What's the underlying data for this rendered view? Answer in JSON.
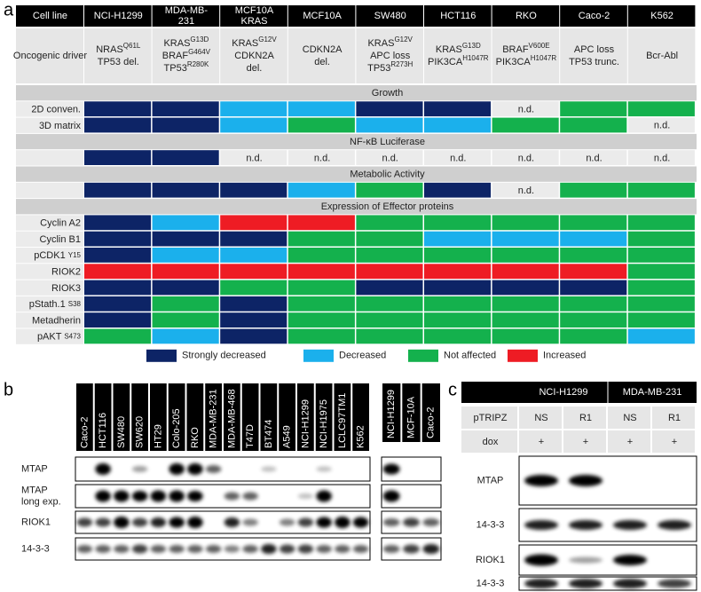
{
  "panel_a": {
    "label": "a",
    "header": [
      [
        "Cell line"
      ],
      [
        "NCI-H1299"
      ],
      [
        "MDA-MB-",
        "231"
      ],
      [
        "MCF10A",
        "KRAS"
      ],
      [
        "MCF10A"
      ],
      [
        "SW480"
      ],
      [
        "HCT116"
      ],
      [
        "RKO"
      ],
      [
        "Caco-2"
      ],
      [
        "K562"
      ]
    ],
    "driver_label": "Oncogenic driver",
    "drivers": [
      [
        {
          "text": "NRAS",
          "sup": "Q61L"
        },
        {
          "text": "TP53 del."
        }
      ],
      [
        {
          "text": "KRAS",
          "sup": "G13D"
        },
        {
          "text": "BRAF",
          "sup": "G464V"
        },
        {
          "text": "TP53",
          "sup": "R280K"
        }
      ],
      [
        {
          "text": "KRAS",
          "sup": "G12V"
        },
        {
          "text": "CDKN2A"
        },
        {
          "text": "del."
        }
      ],
      [
        {
          "text": "CDKN2A"
        },
        {
          "text": "del."
        }
      ],
      [
        {
          "text": "KRAS",
          "sup": "G12V"
        },
        {
          "text": "APC loss"
        },
        {
          "text": "TP53",
          "sup": "R273H"
        }
      ],
      [
        {
          "text": "KRAS",
          "sup": "G13D"
        },
        {
          "text": "PIK3CA",
          "sup": "H1047R"
        }
      ],
      [
        {
          "text": "BRAF",
          "sup": "V600E"
        },
        {
          "text": "PIK3CA",
          "sup": "H1047R"
        }
      ],
      [
        {
          "text": "APC loss"
        },
        {
          "text": "TP53 trunc."
        }
      ],
      [
        {
          "text": "Bcr-Abl"
        }
      ]
    ],
    "sections": [
      {
        "title": "Growth",
        "rows": [
          {
            "label": {
              "text": "2D conven."
            },
            "cells": [
              "#0d2466",
              "#0d2466",
              "#1bb0ec",
              "#1bb0ec",
              "#0d2466",
              "#0d2466",
              "n.d.",
              "#14b14d",
              "#14b14d"
            ]
          },
          {
            "label": {
              "text": "3D matrix"
            },
            "cells": [
              "#0d2466",
              "#0d2466",
              "#1bb0ec",
              "#14b14d",
              "#1bb0ec",
              "#1bb0ec",
              "#14b14d",
              "#14b14d",
              "n.d."
            ]
          }
        ]
      },
      {
        "title": "NF-κB Luciferase",
        "rows": [
          {
            "cells": [
              "#0d2466",
              "#0d2466",
              "n.d.",
              "n.d.",
              "n.d.",
              "n.d.",
              "n.d.",
              "n.d.",
              "n.d."
            ]
          }
        ]
      },
      {
        "title": "Metabolic Activity",
        "rows": [
          {
            "cells": [
              "#0d2466",
              "#0d2466",
              "#0d2466",
              "#1bb0ec",
              "#14b14d",
              "#0d2466",
              "n.d.",
              "#14b14d",
              "#14b14d"
            ]
          }
        ]
      },
      {
        "title": "Expression of Effector proteins",
        "rows": [
          {
            "label": {
              "text": "Cyclin A2"
            },
            "cells": [
              "#0d2466",
              "#1bb0ec",
              "#ee1c24",
              "#ee1c24",
              "#14b14d",
              "#14b14d",
              "#14b14d",
              "#14b14d",
              "#14b14d"
            ]
          },
          {
            "label": {
              "text": "Cyclin B1"
            },
            "cells": [
              "#0d2466",
              "#0d2466",
              "#0d2466",
              "#14b14d",
              "#14b14d",
              "#1bb0ec",
              "#1bb0ec",
              "#1bb0ec",
              "#14b14d"
            ]
          },
          {
            "label": {
              "text": "pCDK1",
              "small": "Y15"
            },
            "cells": [
              "#0d2466",
              "#1bb0ec",
              "#1bb0ec",
              "#14b14d",
              "#14b14d",
              "#14b14d",
              "#14b14d",
              "#14b14d",
              "#14b14d"
            ]
          },
          {
            "label": {
              "text": "RIOK2"
            },
            "cells": [
              "#ee1c24",
              "#ee1c24",
              "#ee1c24",
              "#ee1c24",
              "#ee1c24",
              "#ee1c24",
              "#ee1c24",
              "#ee1c24",
              "#14b14d"
            ]
          },
          {
            "label": {
              "text": "RIOK3"
            },
            "cells": [
              "#0d2466",
              "#0d2466",
              "#14b14d",
              "#14b14d",
              "#0d2466",
              "#0d2466",
              "#0d2466",
              "#0d2466",
              "#14b14d"
            ]
          },
          {
            "label": {
              "text": "pStath.1",
              "small": "S38"
            },
            "cells": [
              "#0d2466",
              "#14b14d",
              "#0d2466",
              "#14b14d",
              "#14b14d",
              "#14b14d",
              "#14b14d",
              "#14b14d",
              "#14b14d"
            ]
          },
          {
            "label": {
              "text": "Metadherin"
            },
            "cells": [
              "#0d2466",
              "#14b14d",
              "#0d2466",
              "#14b14d",
              "#14b14d",
              "#14b14d",
              "#14b14d",
              "#14b14d",
              "#14b14d"
            ]
          },
          {
            "label": {
              "text": "pAKT",
              "small": "S473"
            },
            "cells": [
              "#14b14d",
              "#1bb0ec",
              "#0d2466",
              "#14b14d",
              "#14b14d",
              "#14b14d",
              "#14b14d",
              "#14b14d",
              "#1bb0ec"
            ]
          }
        ]
      }
    ],
    "legend": [
      {
        "name": "Strongly decreased",
        "color": "#0d2466"
      },
      {
        "name": "Decreased",
        "color": "#1bb0ec"
      },
      {
        "name": "Not affected",
        "color": "#14b14d"
      },
      {
        "name": "Increased",
        "color": "#ee1c24"
      }
    ]
  },
  "panel_b": {
    "label": "b",
    "lanes": [
      "Caco-2",
      "HCT116",
      "SW480",
      "SW620",
      "HT29",
      "Colo-205",
      "RKO",
      "MDA-MB-231",
      "MDA-MB-468",
      "T47D",
      "BT474",
      "A549",
      "NCI-H1299",
      "NCI-H1975",
      "LCLC97TM1",
      "K562"
    ],
    "lanes2": [
      "NCI-H1299",
      "MCF-10A",
      "Caco-2"
    ],
    "rows": [
      [
        "MTAP"
      ],
      [
        "MTAP",
        "long exp."
      ],
      [
        "RIOK1"
      ],
      [
        "14-3-3"
      ]
    ]
  },
  "panel_c": {
    "label": "c",
    "cell_lines": [
      "NCI-H1299",
      "MDA-MB-231"
    ],
    "rows": [
      {
        "label": "pTRIPZ",
        "values": [
          "NS",
          "R1",
          "NS",
          "R1"
        ]
      },
      {
        "label": "dox",
        "values": [
          "+",
          "+",
          "+",
          "+"
        ]
      }
    ],
    "blots": [
      "MTAP",
      "14-3-3",
      "RIOK1",
      "14-3-3"
    ]
  }
}
